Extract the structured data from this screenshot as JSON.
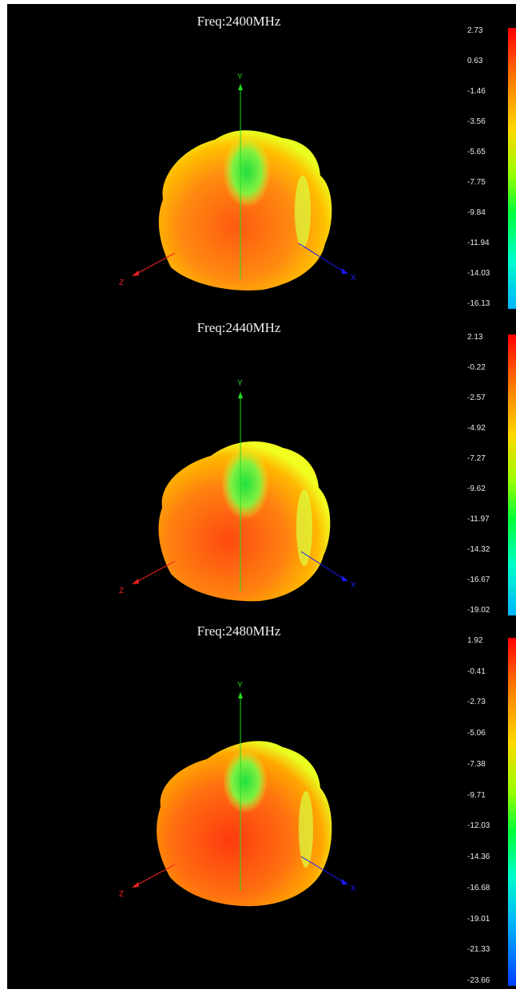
{
  "panels": [
    {
      "title": "Freq:2400MHz",
      "scale": [
        "2.73",
        "0.63",
        "-1.46",
        "-3.56",
        "-5.65",
        "-7.75",
        "-9.84",
        "-11.94",
        "-14.03",
        "-16.13"
      ]
    },
    {
      "title": "Freq:2440MHz",
      "scale": [
        "2.13",
        "-0.22",
        "-2.57",
        "-4.92",
        "-7.27",
        "-9.62",
        "-11.97",
        "-14.32",
        "-16.67",
        "-19.02"
      ]
    },
    {
      "title": "Freq:2480MHz",
      "scale": [
        "1.92",
        "-0.41",
        "-2.73",
        "-5.06",
        "-7.38",
        "-9.71",
        "-12.03",
        "-14.36",
        "-16.68",
        "-19.01",
        "-21.33",
        "-23.66"
      ]
    }
  ],
  "axes": {
    "x": "X",
    "y": "Y",
    "z": "Z"
  },
  "colors": {
    "axis_x": "#1a1aff",
    "axis_y": "#22dd22",
    "axis_z": "#ee2020",
    "background": "#000000"
  }
}
